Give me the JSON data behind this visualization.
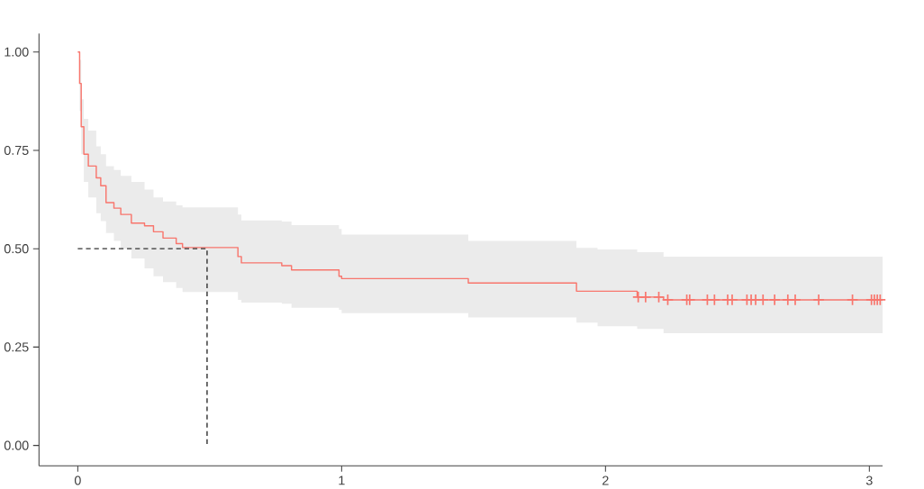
{
  "chart_data": {
    "type": "step",
    "xlim": [
      -0.147,
      3.05
    ],
    "ylim": [
      -0.052,
      1.047
    ],
    "xticks": [
      0,
      1,
      2,
      3
    ],
    "yticks": [
      {
        "value": 0,
        "label": "0.00"
      },
      {
        "value": 0.25,
        "label": "0.25"
      },
      {
        "value": 0.5,
        "label": "0.50"
      },
      {
        "value": 0.75,
        "label": "0.75"
      },
      {
        "value": 1,
        "label": "1.00"
      }
    ],
    "grid": false,
    "series": [
      {
        "color": "#f8766d",
        "marker": "none",
        "x": [
          0,
          0.007,
          0.013,
          0.023,
          0.04,
          0.07,
          0.087,
          0.107,
          0.137,
          0.163,
          0.203,
          0.253,
          0.287,
          0.323,
          0.373,
          0.397,
          0.607,
          0.62,
          0.773,
          0.81,
          0.99,
          1.0,
          1.48,
          1.89,
          1.97,
          2.12,
          2.22,
          3.05
        ],
        "values": [
          1.0,
          0.92,
          0.81,
          0.74,
          0.71,
          0.68,
          0.66,
          0.617,
          0.603,
          0.587,
          0.565,
          0.558,
          0.543,
          0.527,
          0.513,
          0.503,
          0.48,
          0.464,
          0.457,
          0.446,
          0.43,
          0.424,
          0.413,
          0.392,
          0.392,
          0.377,
          0.37,
          0.37
        ],
        "lower": [
          1.0,
          0.85,
          0.74,
          0.67,
          0.63,
          0.59,
          0.57,
          0.54,
          0.52,
          0.5,
          0.475,
          0.45,
          0.43,
          0.415,
          0.4,
          0.39,
          0.37,
          0.363,
          0.36,
          0.35,
          0.345,
          0.336,
          0.325,
          0.312,
          0.303,
          0.296,
          0.285,
          0.285
        ],
        "upper": [
          1.0,
          0.98,
          0.88,
          0.83,
          0.8,
          0.76,
          0.74,
          0.71,
          0.7,
          0.685,
          0.67,
          0.65,
          0.63,
          0.62,
          0.61,
          0.605,
          0.587,
          0.572,
          0.569,
          0.56,
          0.55,
          0.536,
          0.52,
          0.502,
          0.498,
          0.491,
          0.48,
          0.48
        ]
      },
      {
        "type": "scatter",
        "color": "#f8766d",
        "marker": "cross",
        "x": [
          2.124,
          2.152,
          2.202,
          2.236,
          2.308,
          2.319,
          2.386,
          2.413,
          2.463,
          2.48,
          2.536,
          2.552,
          2.569,
          2.597,
          2.641,
          2.691,
          2.719,
          2.808,
          2.936,
          3.008,
          3.019,
          3.03,
          3.041
        ],
        "values": [
          0.377,
          0.377,
          0.377,
          0.37,
          0.37,
          0.37,
          0.37,
          0.37,
          0.37,
          0.37,
          0.37,
          0.37,
          0.37,
          0.37,
          0.37,
          0.37,
          0.37,
          0.37,
          0.37,
          0.37,
          0.37,
          0.37,
          0.37
        ]
      },
      {
        "type": "line",
        "color": "#333333",
        "marker": "none",
        "line_style": "dashed",
        "x": [
          0,
          0.49,
          0.49
        ],
        "values": [
          0.5,
          0.5,
          0
        ]
      }
    ]
  }
}
